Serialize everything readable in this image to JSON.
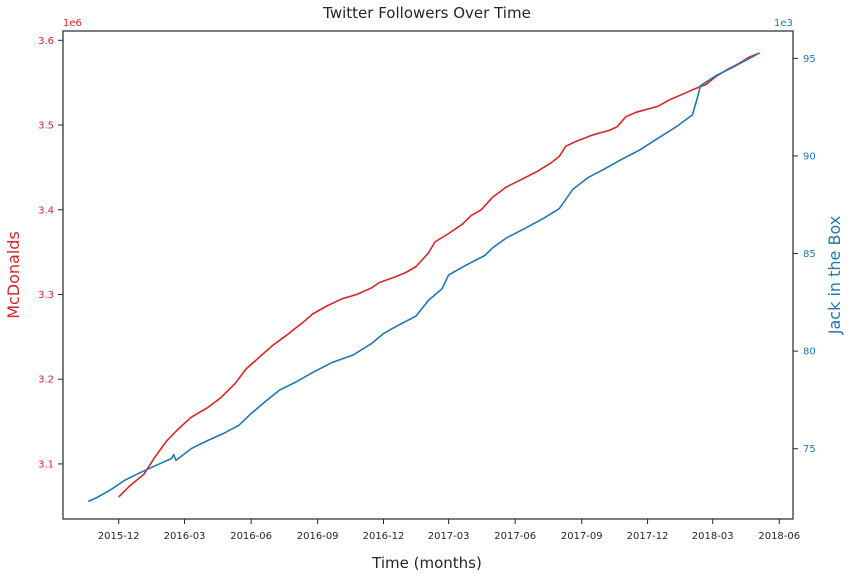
{
  "chart_data": {
    "type": "line",
    "title": "Twitter Followers Over Time",
    "xlabel": "Time (months)",
    "x_ticks": [
      "2015-12",
      "2016-03",
      "2016-06",
      "2016-09",
      "2016-12",
      "2017-03",
      "2017-06",
      "2017-09",
      "2017-12",
      "2018-03",
      "2018-06"
    ],
    "xlim": [
      "2015-09-15",
      "2018-06-20"
    ],
    "grid": false,
    "series": [
      {
        "name": "McDonalds",
        "axis": "left",
        "color": "#d62728",
        "points": [
          [
            "2015-12-01",
            3061000
          ],
          [
            "2015-12-15",
            3073000
          ],
          [
            "2016-01-05",
            3088000
          ],
          [
            "2016-01-20",
            3108000
          ],
          [
            "2016-02-05",
            3127000
          ],
          [
            "2016-02-20",
            3140000
          ],
          [
            "2016-03-10",
            3155000
          ],
          [
            "2016-04-01",
            3166000
          ],
          [
            "2016-04-20",
            3178000
          ],
          [
            "2016-05-10",
            3195000
          ],
          [
            "2016-05-25",
            3212000
          ],
          [
            "2016-06-15",
            3228000
          ],
          [
            "2016-07-01",
            3240000
          ],
          [
            "2016-07-20",
            3252000
          ],
          [
            "2016-08-10",
            3266000
          ],
          [
            "2016-08-25",
            3277000
          ],
          [
            "2016-09-15",
            3287000
          ],
          [
            "2016-10-05",
            3295000
          ],
          [
            "2016-10-25",
            3300000
          ],
          [
            "2016-11-15",
            3308000
          ],
          [
            "2016-11-25",
            3314000
          ],
          [
            "2016-12-15",
            3320000
          ],
          [
            "2017-01-01",
            3326000
          ],
          [
            "2017-01-15",
            3333000
          ],
          [
            "2017-02-01",
            3349000
          ],
          [
            "2017-02-10",
            3362000
          ],
          [
            "2017-03-01",
            3372000
          ],
          [
            "2017-03-20",
            3383000
          ],
          [
            "2017-04-01",
            3393000
          ],
          [
            "2017-04-15",
            3400000
          ],
          [
            "2017-05-01",
            3415000
          ],
          [
            "2017-05-20",
            3427000
          ],
          [
            "2017-06-10",
            3436000
          ],
          [
            "2017-07-01",
            3445000
          ],
          [
            "2017-07-20",
            3455000
          ],
          [
            "2017-08-01",
            3463000
          ],
          [
            "2017-08-10",
            3475000
          ],
          [
            "2017-08-25",
            3481000
          ],
          [
            "2017-09-15",
            3488000
          ],
          [
            "2017-10-10",
            3494000
          ],
          [
            "2017-10-20",
            3498000
          ],
          [
            "2017-11-01",
            3510000
          ],
          [
            "2017-11-15",
            3515000
          ],
          [
            "2017-12-15",
            3522000
          ],
          [
            "2018-01-01",
            3530000
          ],
          [
            "2018-01-20",
            3537000
          ],
          [
            "2018-02-05",
            3543000
          ],
          [
            "2018-02-20",
            3548000
          ],
          [
            "2018-03-05",
            3557000
          ],
          [
            "2018-03-20",
            3565000
          ],
          [
            "2018-04-05",
            3572000
          ],
          [
            "2018-04-20",
            3580000
          ],
          [
            "2018-05-05",
            3585000
          ]
        ]
      },
      {
        "name": "Jack in the Box",
        "axis": "right",
        "color": "#1f77b4",
        "points": [
          [
            "2015-10-20",
            72300
          ],
          [
            "2015-11-01",
            72500
          ],
          [
            "2015-11-20",
            72900
          ],
          [
            "2015-12-10",
            73400
          ],
          [
            "2016-01-01",
            73800
          ],
          [
            "2016-01-25",
            74200
          ],
          [
            "2016-02-12",
            74500
          ],
          [
            "2016-02-15",
            74700
          ],
          [
            "2016-02-18",
            74400
          ],
          [
            "2016-03-10",
            75000
          ],
          [
            "2016-04-01",
            75400
          ],
          [
            "2016-04-25",
            75800
          ],
          [
            "2016-05-15",
            76200
          ],
          [
            "2016-06-01",
            76800
          ],
          [
            "2016-06-20",
            77400
          ],
          [
            "2016-07-10",
            78000
          ],
          [
            "2016-08-01",
            78400
          ],
          [
            "2016-08-25",
            78900
          ],
          [
            "2016-09-20",
            79400
          ],
          [
            "2016-10-20",
            79800
          ],
          [
            "2016-11-15",
            80400
          ],
          [
            "2016-12-01",
            80900
          ],
          [
            "2016-12-20",
            81300
          ],
          [
            "2017-01-15",
            81800
          ],
          [
            "2017-02-01",
            82600
          ],
          [
            "2017-02-20",
            83200
          ],
          [
            "2017-03-01",
            83900
          ],
          [
            "2017-03-25",
            84400
          ],
          [
            "2017-04-20",
            84900
          ],
          [
            "2017-05-01",
            85300
          ],
          [
            "2017-05-20",
            85800
          ],
          [
            "2017-06-15",
            86300
          ],
          [
            "2017-07-10",
            86800
          ],
          [
            "2017-08-01",
            87300
          ],
          [
            "2017-08-20",
            88300
          ],
          [
            "2017-09-10",
            88900
          ],
          [
            "2017-10-01",
            89300
          ],
          [
            "2017-10-25",
            89800
          ],
          [
            "2017-11-20",
            90300
          ],
          [
            "2017-12-15",
            90900
          ],
          [
            "2018-01-10",
            91500
          ],
          [
            "2018-02-01",
            92100
          ],
          [
            "2018-02-08",
            93000
          ],
          [
            "2018-02-12",
            93600
          ],
          [
            "2018-03-05",
            94100
          ],
          [
            "2018-04-01",
            94600
          ],
          [
            "2018-05-01",
            95200
          ]
        ]
      }
    ],
    "y_left": {
      "label": "McDonalds",
      "color": "#d62728",
      "multiplier_label": "1e6",
      "ticks": [
        3.1,
        3.2,
        3.3,
        3.4,
        3.5,
        3.6
      ],
      "tick_labels": [
        "3.1",
        "3.2",
        "3.3",
        "3.4",
        "3.5",
        "3.6"
      ],
      "lim": [
        3035000,
        3611000
      ]
    },
    "y_right": {
      "label": "Jack in the Box",
      "color": "#1f77b4",
      "multiplier_label": "1e3",
      "ticks": [
        75000,
        80000,
        85000,
        90000,
        95000
      ],
      "tick_labels": [
        "75",
        "80",
        "85",
        "90",
        "95"
      ],
      "lim": [
        71400,
        96400
      ]
    }
  }
}
